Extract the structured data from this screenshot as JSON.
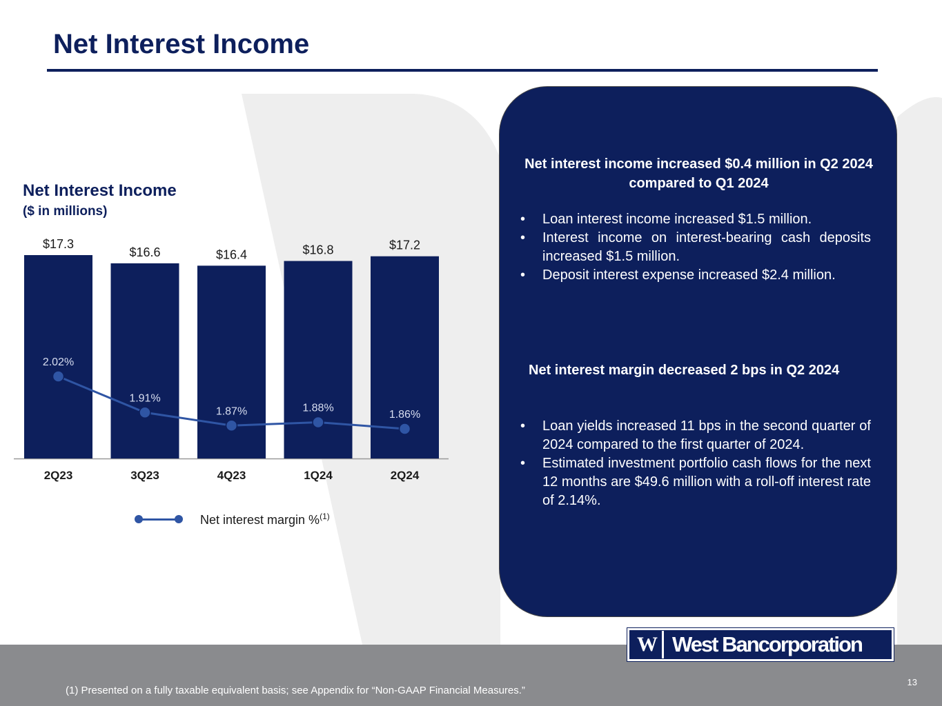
{
  "page": {
    "title": "Net Interest Income",
    "page_number": "13",
    "footnote": "(1) Presented on a fully taxable equivalent basis; see Appendix for “Non-GAAP Financial Measures.”",
    "logo_mark": "W",
    "logo_text": "West Bancorporation"
  },
  "colors": {
    "navy": "#0d1f5c",
    "line": "#2f55a4",
    "footer_gray": "#8a8b8e"
  },
  "chart_data": {
    "type": "bar",
    "title": "Net Interest Income",
    "subtitle": "($ in millions)",
    "categories": [
      "2Q23",
      "3Q23",
      "4Q23",
      "1Q24",
      "2Q24"
    ],
    "series": [
      {
        "name": "Net Interest Income",
        "values": [
          17.3,
          16.6,
          16.4,
          16.8,
          17.2
        ],
        "labels": [
          "$17.3",
          "$16.6",
          "$16.4",
          "$16.8",
          "$17.2"
        ]
      },
      {
        "name": "Net interest margin %",
        "type": "line",
        "values": [
          2.02,
          1.91,
          1.87,
          1.88,
          1.86
        ],
        "labels": [
          "2.02%",
          "1.91%",
          "1.87%",
          "1.88%",
          "1.86%"
        ]
      }
    ],
    "legend": {
      "label": "Net interest margin %",
      "superscript": "(1)",
      "position": "bottom"
    },
    "grid": false
  },
  "panel": {
    "section1": {
      "heading": "Net interest income increased $0.4 million in Q2 2024 compared to Q1 2024",
      "bullets": [
        "Loan interest income increased $1.5 million.",
        "Interest income on interest-bearing cash deposits increased $1.5 million.",
        "Deposit interest expense increased $2.4 million."
      ]
    },
    "section2": {
      "heading": "Net interest margin decreased 2 bps in Q2 2024",
      "bullets": [
        "Loan yields increased 11 bps in the second quarter of 2024 compared to the first quarter of 2024.",
        "Estimated investment portfolio cash flows for the next 12 months are $49.6 million with a roll-off interest rate of 2.14%."
      ]
    }
  }
}
